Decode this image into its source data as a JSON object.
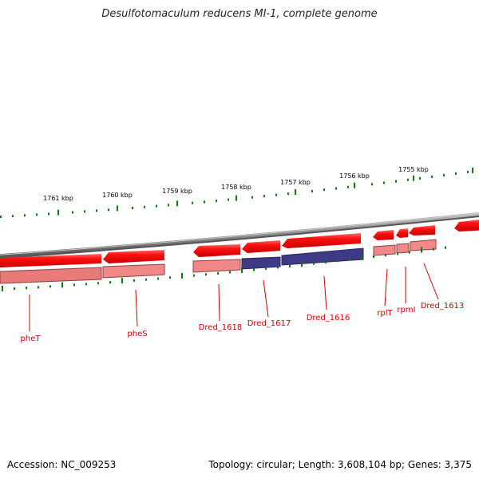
{
  "title": "Desulfotomaculum reducens MI-1, complete genome",
  "footer": {
    "accession": "Accession: NC_009253",
    "info": "Topology: circular; Length: 3,608,104 bp; Genes: 3,375"
  },
  "ruler": {
    "labels": [
      "1761 kbp",
      "1760 kbp",
      "1759 kbp",
      "1758 kbp",
      "1757 kbp",
      "1756 kbp",
      "1755 kbp"
    ],
    "tick_color": "#117711"
  },
  "genes": [
    {
      "label": "pheT"
    },
    {
      "label": "pheS"
    },
    {
      "label": "Dred_1618"
    },
    {
      "label": "Dred_1617"
    },
    {
      "label": "Dred_1616"
    },
    {
      "label": "rplT"
    },
    {
      "label": "rpmI"
    },
    {
      "label": "Dred_1613"
    }
  ],
  "colors": {
    "gene": "#ff0000",
    "gene_light": "#f08888",
    "feature_blue": "#3f3a86",
    "backbone": "#888888",
    "label": "#cc0000"
  }
}
